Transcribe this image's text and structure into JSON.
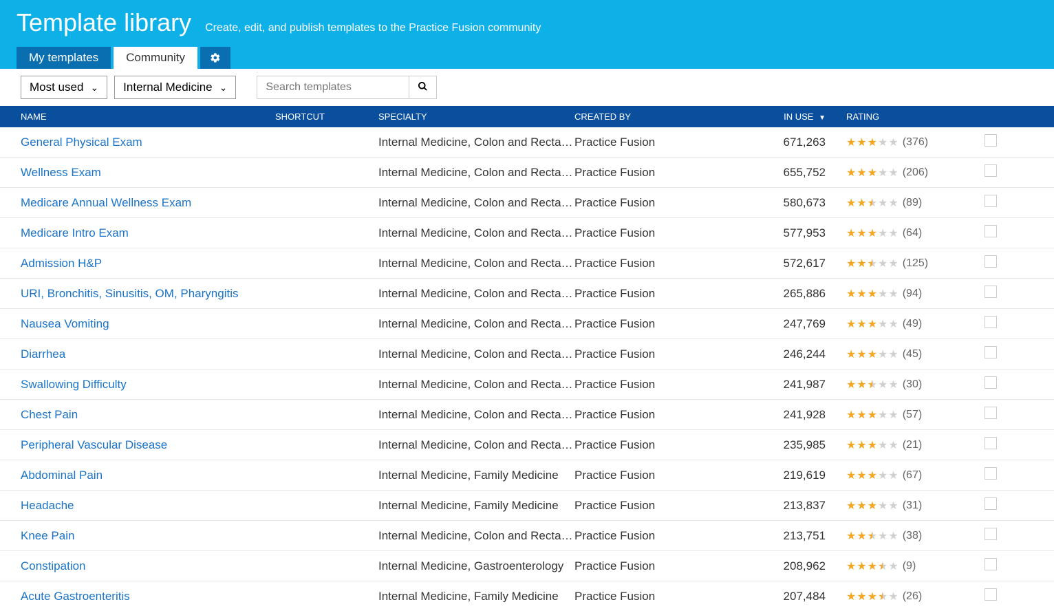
{
  "header": {
    "title": "Template library",
    "subtitle": "Create, edit, and publish templates to the Practice Fusion community"
  },
  "tabs": {
    "my_templates": "My templates",
    "community": "Community"
  },
  "filters": {
    "sort": "Most used",
    "specialty": "Internal Medicine",
    "search_placeholder": "Search templates"
  },
  "columns": {
    "name": "NAME",
    "shortcut": "SHORTCUT",
    "specialty": "SPECIALTY",
    "created_by": "CREATED BY",
    "in_use": "IN USE",
    "rating": "RATING"
  },
  "rows": [
    {
      "name": "General Physical Exam",
      "specialty": "Internal Medicine, Colon and Rectal S...",
      "created_by": "Practice Fusion",
      "in_use": "671,263",
      "rating": 3.0,
      "count": 376
    },
    {
      "name": "Wellness Exam",
      "specialty": "Internal Medicine, Colon and Rectal S...",
      "created_by": "Practice Fusion",
      "in_use": "655,752",
      "rating": 3.0,
      "count": 206
    },
    {
      "name": "Medicare Annual Wellness Exam",
      "specialty": "Internal Medicine, Colon and Rectal S...",
      "created_by": "Practice Fusion",
      "in_use": "580,673",
      "rating": 2.5,
      "count": 89
    },
    {
      "name": "Medicare Intro Exam",
      "specialty": "Internal Medicine, Colon and Rectal S...",
      "created_by": "Practice Fusion",
      "in_use": "577,953",
      "rating": 3.0,
      "count": 64
    },
    {
      "name": "Admission H&P",
      "specialty": "Internal Medicine, Colon and Rectal S...",
      "created_by": "Practice Fusion",
      "in_use": "572,617",
      "rating": 2.5,
      "count": 125
    },
    {
      "name": "URI, Bronchitis, Sinusitis, OM, Pharyngitis",
      "specialty": "Internal Medicine, Colon and Rectal S...",
      "created_by": "Practice Fusion",
      "in_use": "265,886",
      "rating": 3.0,
      "count": 94
    },
    {
      "name": "Nausea Vomiting",
      "specialty": "Internal Medicine, Colon and Rectal S...",
      "created_by": "Practice Fusion",
      "in_use": "247,769",
      "rating": 3.0,
      "count": 49
    },
    {
      "name": "Diarrhea",
      "specialty": "Internal Medicine, Colon and Rectal S...",
      "created_by": "Practice Fusion",
      "in_use": "246,244",
      "rating": 3.0,
      "count": 45
    },
    {
      "name": "Swallowing Difficulty",
      "specialty": "Internal Medicine, Colon and Rectal S...",
      "created_by": "Practice Fusion",
      "in_use": "241,987",
      "rating": 2.5,
      "count": 30
    },
    {
      "name": "Chest Pain",
      "specialty": "Internal Medicine, Colon and Rectal S...",
      "created_by": "Practice Fusion",
      "in_use": "241,928",
      "rating": 3.0,
      "count": 57
    },
    {
      "name": "Peripheral Vascular Disease",
      "specialty": "Internal Medicine, Colon and Rectal S...",
      "created_by": "Practice Fusion",
      "in_use": "235,985",
      "rating": 3.0,
      "count": 21
    },
    {
      "name": "Abdominal Pain",
      "specialty": "Internal Medicine, Family Medicine",
      "created_by": "Practice Fusion",
      "in_use": "219,619",
      "rating": 3.0,
      "count": 67
    },
    {
      "name": "Headache",
      "specialty": "Internal Medicine, Family Medicine",
      "created_by": "Practice Fusion",
      "in_use": "213,837",
      "rating": 3.0,
      "count": 31
    },
    {
      "name": "Knee Pain",
      "specialty": "Internal Medicine, Colon and Rectal S...",
      "created_by": "Practice Fusion",
      "in_use": "213,751",
      "rating": 2.5,
      "count": 38
    },
    {
      "name": "Constipation",
      "specialty": "Internal Medicine, Gastroenterology",
      "created_by": "Practice Fusion",
      "in_use": "208,962",
      "rating": 3.5,
      "count": 9
    },
    {
      "name": "Acute Gastroenteritis",
      "specialty": "Internal Medicine, Family Medicine",
      "created_by": "Practice Fusion",
      "in_use": "207,484",
      "rating": 3.5,
      "count": 26
    }
  ]
}
